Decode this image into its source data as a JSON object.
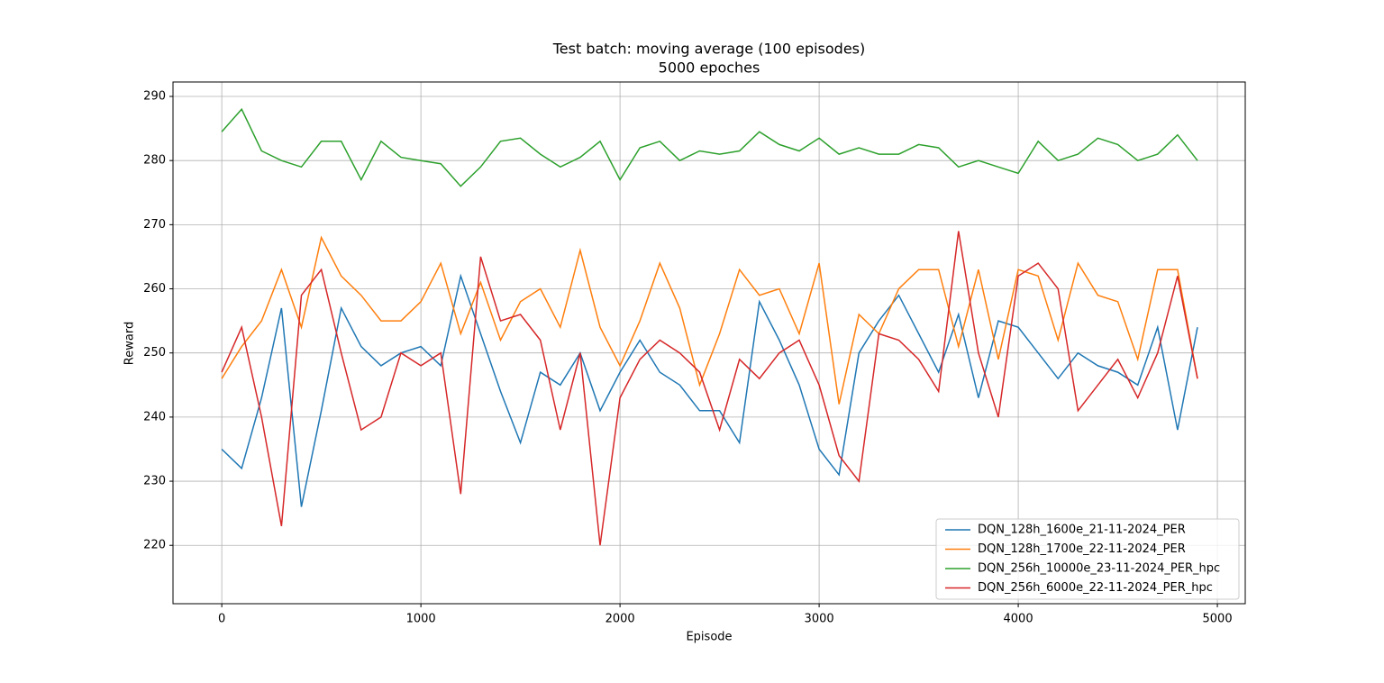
{
  "chart_data": {
    "type": "line",
    "title": "Test batch: moving average (100 episodes)",
    "subtitle": "5000 epoches",
    "x_label": "Episode",
    "y_label": "Reward",
    "x": [
      0,
      100,
      200,
      300,
      400,
      500,
      600,
      700,
      800,
      900,
      1000,
      1100,
      1200,
      1300,
      1400,
      1500,
      1600,
      1700,
      1800,
      1900,
      2000,
      2100,
      2200,
      2300,
      2400,
      2500,
      2600,
      2700,
      2800,
      2900,
      3000,
      3100,
      3200,
      3300,
      3400,
      3500,
      3600,
      3700,
      3800,
      3900,
      4000,
      4100,
      4200,
      4300,
      4400,
      4500,
      4600,
      4700,
      4800,
      4900
    ],
    "series": [
      {
        "name": "DQN_128h_1600e_21-11-2024_PER",
        "color": "#1f77b4",
        "values": [
          235,
          232,
          243,
          257,
          226,
          241,
          257,
          251,
          248,
          250,
          251,
          248,
          262,
          253,
          244,
          236,
          247,
          245,
          250,
          241,
          247,
          252,
          247,
          245,
          241,
          241,
          236,
          258,
          252,
          245,
          235,
          231,
          250,
          255,
          259,
          253,
          247,
          256,
          243,
          255,
          254,
          250,
          246,
          250,
          248,
          247,
          245,
          254,
          238,
          254
        ]
      },
      {
        "name": "DQN_128h_1700e_22-11-2024_PER",
        "color": "#ff7f0e",
        "values": [
          246,
          251,
          255,
          263,
          254,
          268,
          262,
          259,
          255,
          255,
          258,
          264,
          253,
          261,
          252,
          258,
          260,
          254,
          266,
          254,
          248,
          255,
          264,
          257,
          245,
          253,
          263,
          259,
          260,
          253,
          264,
          242,
          256,
          253,
          260,
          263,
          263,
          251,
          263,
          249,
          263,
          262,
          252,
          264,
          259,
          258,
          249,
          263,
          263,
          246
        ]
      },
      {
        "name": "DQN_256h_10000e_23-11-2024_PER_hpc",
        "color": "#2ca02c",
        "values": [
          284.5,
          288,
          281.5,
          280,
          279,
          283,
          283,
          277,
          283,
          280.5,
          280,
          279.5,
          276,
          279,
          283,
          283.5,
          281,
          279,
          280.5,
          283,
          277,
          282,
          283,
          280,
          281.5,
          281,
          281.5,
          284.5,
          282.5,
          281.5,
          283.5,
          281,
          282,
          281,
          281,
          282.5,
          282,
          279,
          280,
          279,
          278,
          283,
          280,
          281,
          283.5,
          282.5,
          280,
          281,
          284,
          280
        ]
      },
      {
        "name": "DQN_256h_6000e_22-11-2024_PER_hpc",
        "color": "#d62728",
        "values": [
          247,
          254,
          240,
          223,
          259,
          263,
          250,
          238,
          240,
          250,
          248,
          250,
          228,
          265,
          255,
          256,
          252,
          238,
          250,
          220,
          243,
          249,
          252,
          250,
          247,
          238,
          249,
          246,
          250,
          252,
          245,
          234,
          230,
          253,
          252,
          249,
          244,
          269,
          250,
          240,
          262,
          264,
          260,
          241,
          245,
          249,
          243,
          250,
          262,
          246
        ]
      }
    ],
    "xlim": [
      -245,
      5140
    ],
    "ylim": [
      210.9,
      292.25
    ],
    "xticks": [
      0,
      1000,
      2000,
      3000,
      4000,
      5000
    ],
    "yticks": [
      220,
      230,
      240,
      250,
      260,
      270,
      280,
      290
    ],
    "grid": true,
    "legend": "lower right"
  }
}
